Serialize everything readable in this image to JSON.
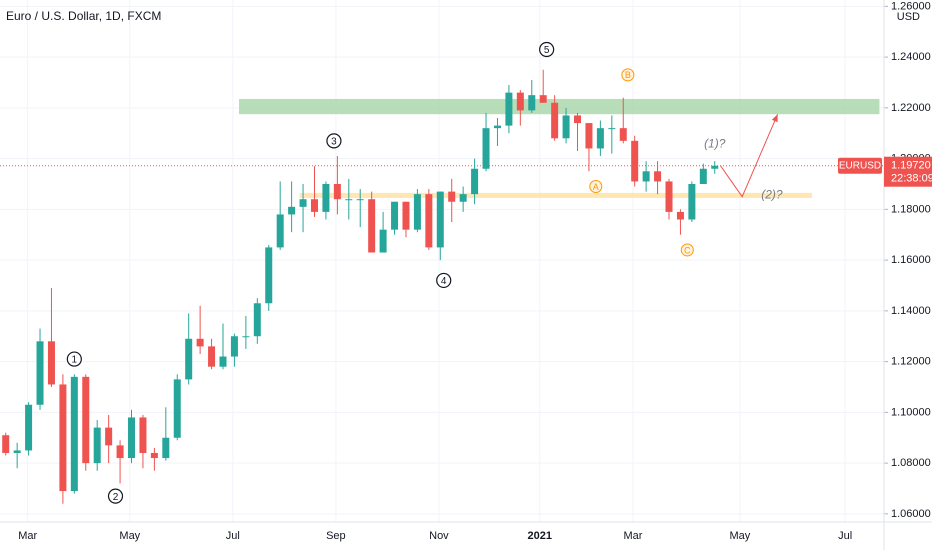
{
  "chart_data": {
    "type": "candlestick",
    "title": "Euro / U.S. Dollar, 1D, FXCM",
    "y_unit": "USD",
    "categories": [
      null,
      null,
      null,
      null,
      null,
      null,
      null,
      null,
      null,
      null,
      null,
      null,
      null,
      null,
      null,
      null,
      null,
      null,
      null,
      null,
      null,
      null,
      null,
      null,
      null,
      null,
      null,
      null,
      null,
      null,
      null,
      null,
      null,
      null,
      null,
      null,
      null,
      null,
      null,
      null,
      null,
      null,
      null,
      null,
      null,
      null,
      null,
      null,
      null,
      null,
      null,
      null,
      null,
      null,
      null,
      null,
      null,
      null,
      null,
      null,
      null,
      null,
      null
    ],
    "open": [
      1.091,
      1.084,
      1.085,
      1.103,
      1.128,
      1.111,
      1.069,
      1.114,
      1.08,
      1.094,
      1.087,
      1.082,
      1.098,
      1.084,
      1.082,
      1.09,
      1.113,
      1.129,
      1.126,
      1.118,
      1.122,
      1.13,
      1.13,
      1.143,
      1.165,
      1.178,
      1.181,
      1.184,
      1.179,
      1.19,
      1.184,
      1.184,
      1.184,
      1.163,
      1.172,
      1.183,
      1.172,
      1.186,
      1.165,
      1.187,
      1.183,
      1.186,
      1.196,
      1.212,
      1.213,
      1.226,
      1.219,
      1.225,
      1.222,
      1.208,
      1.217,
      1.214,
      1.204,
      1.212,
      1.212,
      1.207,
      1.191,
      1.195,
      1.191,
      1.179,
      1.176,
      1.19,
      1.196
    ],
    "high": [
      1.092,
      1.088,
      1.104,
      1.133,
      1.149,
      1.115,
      1.115,
      1.115,
      1.097,
      1.099,
      1.089,
      1.101,
      1.099,
      1.086,
      1.102,
      1.115,
      1.139,
      1.142,
      1.129,
      1.135,
      1.131,
      1.138,
      1.145,
      1.166,
      1.191,
      1.191,
      1.19,
      1.197,
      1.191,
      1.201,
      1.192,
      1.188,
      1.187,
      1.179,
      1.183,
      1.183,
      1.188,
      1.188,
      1.187,
      1.192,
      1.189,
      1.2,
      1.218,
      1.216,
      1.229,
      1.227,
      1.231,
      1.235,
      1.225,
      1.22,
      1.218,
      1.214,
      1.215,
      1.217,
      1.224,
      1.209,
      1.199,
      1.199,
      1.192,
      1.18,
      1.191,
      1.198,
      1.199
    ],
    "low": [
      1.083,
      1.078,
      1.083,
      1.101,
      1.11,
      1.064,
      1.068,
      1.077,
      1.077,
      1.08,
      1.072,
      1.08,
      1.078,
      1.077,
      1.081,
      1.089,
      1.111,
      1.123,
      1.117,
      1.117,
      1.118,
      1.125,
      1.127,
      1.14,
      1.164,
      1.171,
      1.171,
      1.177,
      1.176,
      1.178,
      1.176,
      1.173,
      1.163,
      1.163,
      1.17,
      1.169,
      1.171,
      1.164,
      1.16,
      1.175,
      1.179,
      1.182,
      1.195,
      1.205,
      1.21,
      1.213,
      1.218,
      1.222,
      1.207,
      1.206,
      1.203,
      1.195,
      1.201,
      1.202,
      1.206,
      1.189,
      1.187,
      1.186,
      1.176,
      1.17,
      1.175,
      1.19,
      1.194
    ],
    "close": [
      1.084,
      1.085,
      1.103,
      1.128,
      1.111,
      1.069,
      1.114,
      1.08,
      1.094,
      1.087,
      1.082,
      1.098,
      1.084,
      1.082,
      1.09,
      1.113,
      1.129,
      1.126,
      1.118,
      1.122,
      1.13,
      1.13,
      1.143,
      1.165,
      1.178,
      1.181,
      1.184,
      1.179,
      1.19,
      1.184,
      1.184,
      1.184,
      1.163,
      1.172,
      1.183,
      1.172,
      1.186,
      1.165,
      1.187,
      1.183,
      1.186,
      1.196,
      1.212,
      1.213,
      1.226,
      1.219,
      1.225,
      1.222,
      1.208,
      1.217,
      1.214,
      1.204,
      1.212,
      1.212,
      1.207,
      1.191,
      1.195,
      1.191,
      1.179,
      1.176,
      1.19,
      1.196,
      1.1972
    ],
    "up_color": "#26a69a",
    "down_color": "#ef5350",
    "xlim": [
      -0.5,
      76.8
    ],
    "xticks": [
      {
        "value": 1.92,
        "label": "Mar"
      },
      {
        "value": 10.85,
        "label": "May"
      },
      {
        "value": 19.86,
        "label": "Jul"
      },
      {
        "value": 28.87,
        "label": "Sep"
      },
      {
        "value": 37.88,
        "label": "Nov"
      },
      {
        "value": 46.7,
        "label": "2021"
      },
      {
        "value": 54.85,
        "label": "Mar"
      },
      {
        "value": 64.2,
        "label": "May"
      },
      {
        "value": 73.4,
        "label": "Jul"
      }
    ],
    "ylim": [
      1.0568,
      1.2625
    ],
    "yticks": [
      {
        "value": 1.06,
        "label": "1.06000"
      },
      {
        "value": 1.08,
        "label": "1.08000"
      },
      {
        "value": 1.1,
        "label": "1.10000"
      },
      {
        "value": 1.12,
        "label": "1.12000"
      },
      {
        "value": 1.14,
        "label": "1.14000"
      },
      {
        "value": 1.16,
        "label": "1.16000"
      },
      {
        "value": 1.18,
        "label": "1.18000"
      },
      {
        "value": 1.2,
        "label": "1.20000"
      },
      {
        "value": 1.22,
        "label": "1.22000"
      },
      {
        "value": 1.24,
        "label": "1.24000"
      },
      {
        "value": 1.26,
        "label": "1.26000"
      }
    ],
    "grid": true,
    "last_price": {
      "symbol": "EURUSD",
      "value": 1.1972,
      "value_label": "1.19720",
      "countdown": "22:38:09",
      "color": "#ef5350"
    },
    "zones": [
      {
        "from": 20.4,
        "to": 76.4,
        "low": 1.2175,
        "high": 1.2235,
        "color": "#a5d6a7"
      },
      {
        "from": 25.7,
        "to": 70.5,
        "low": 1.1845,
        "high": 1.1865,
        "color": "#ffe0a0"
      }
    ],
    "annotations": [
      {
        "text": "1",
        "x": 6.0,
        "y": 1.121,
        "style": "circle"
      },
      {
        "text": "2",
        "x": 9.6,
        "y": 1.067,
        "style": "circle"
      },
      {
        "text": "3",
        "x": 28.7,
        "y": 1.207,
        "style": "circle"
      },
      {
        "text": "4",
        "x": 38.3,
        "y": 1.152,
        "style": "circle"
      },
      {
        "text": "5",
        "x": 47.3,
        "y": 1.243,
        "style": "circle"
      },
      {
        "text": "A",
        "x": 51.6,
        "y": 1.189,
        "style": "orange"
      },
      {
        "text": "B",
        "x": 54.4,
        "y": 1.233,
        "style": "orange"
      },
      {
        "text": "C",
        "x": 59.6,
        "y": 1.164,
        "style": "orange"
      },
      {
        "text": "(1)?",
        "x": 62.0,
        "y": 1.206,
        "style": "note"
      },
      {
        "text": "(2)?",
        "x": 67.0,
        "y": 1.186,
        "style": "note"
      }
    ],
    "projection": {
      "x": [
        62.5,
        64.4,
        67.5
      ],
      "y": [
        1.1972,
        1.185,
        1.2175
      ],
      "color": "#ef5350"
    }
  }
}
